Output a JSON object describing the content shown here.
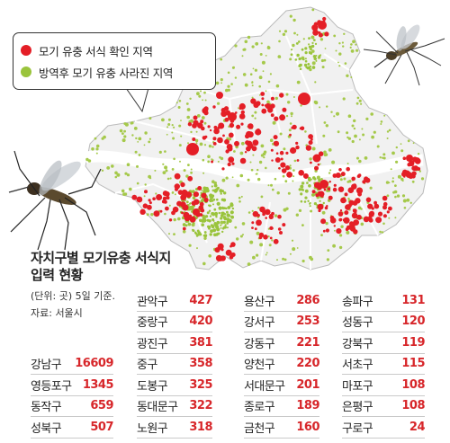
{
  "legend": {
    "items": [
      {
        "label": "모기 유충 서식 확인 지역",
        "color": "#e41e26"
      },
      {
        "label": "방역후 모기 유충 사라진 지역",
        "color": "#9ac43c"
      }
    ]
  },
  "title": "자치구별 모기유충 서식지 입력 현황",
  "unit": "(단위: 곳) 5일 기준.",
  "source": "자료: 서울시",
  "districts": [
    {
      "name": "강남구",
      "value": 16609
    },
    {
      "name": "영등포구",
      "value": 1345
    },
    {
      "name": "동작구",
      "value": 659
    },
    {
      "name": "성북구",
      "value": 507
    },
    {
      "name": "관악구",
      "value": 427
    },
    {
      "name": "중랑구",
      "value": 420
    },
    {
      "name": "광진구",
      "value": 381
    },
    {
      "name": "중구",
      "value": 358
    },
    {
      "name": "도봉구",
      "value": 325
    },
    {
      "name": "동대문구",
      "value": 322
    },
    {
      "name": "노원구",
      "value": 318
    },
    {
      "name": "용산구",
      "value": 286
    },
    {
      "name": "강서구",
      "value": 253
    },
    {
      "name": "강동구",
      "value": 221
    },
    {
      "name": "양천구",
      "value": 220
    },
    {
      "name": "서대문구",
      "value": 201
    },
    {
      "name": "종로구",
      "value": 189
    },
    {
      "name": "금천구",
      "value": 160
    },
    {
      "name": "송파구",
      "value": 131
    },
    {
      "name": "성동구",
      "value": 120
    },
    {
      "name": "강북구",
      "value": 119
    },
    {
      "name": "서초구",
      "value": 115
    },
    {
      "name": "마포구",
      "value": 108
    },
    {
      "name": "은평구",
      "value": 108
    },
    {
      "name": "구로구",
      "value": 24
    }
  ]
}
